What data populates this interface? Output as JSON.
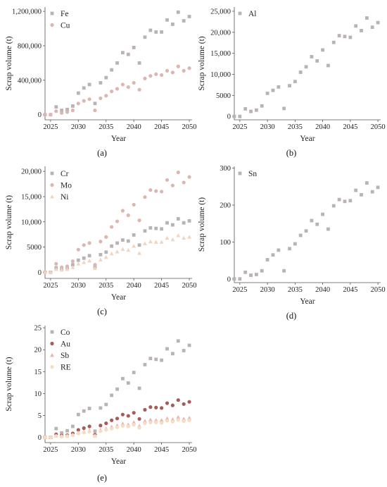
{
  "chart_data": [
    {
      "type": "scatter",
      "panel_label": "(a)",
      "xlabel": "Year",
      "ylabel": "Scrap volume (t)",
      "xlim": [
        2024,
        2050.5
      ],
      "ylim": [
        -60000,
        1250000
      ],
      "xticks": [
        2025,
        2030,
        2035,
        2040,
        2045,
        2050
      ],
      "yticks": [
        0,
        400000,
        800000,
        1200000
      ],
      "ytick_labels": [
        "0",
        "400,000",
        "800,000",
        "1,200,000"
      ],
      "legend_position": "top-left",
      "x": [
        2024,
        2025,
        2026,
        2027,
        2028,
        2029,
        2030,
        2031,
        2032,
        2033,
        2034,
        2035,
        2036,
        2037,
        2038,
        2039,
        2040,
        2041,
        2042,
        2043,
        2044,
        2045,
        2046,
        2047,
        2048,
        2049,
        2050
      ],
      "series": [
        {
          "name": "Fe",
          "color": "#b9b3b3",
          "marker": "square",
          "values": [
            0,
            0,
            90000,
            50000,
            60000,
            100000,
            250000,
            310000,
            350000,
            130000,
            370000,
            430000,
            520000,
            600000,
            720000,
            700000,
            780000,
            600000,
            900000,
            980000,
            960000,
            960000,
            1100000,
            1050000,
            1190000,
            1090000,
            1140000
          ]
        },
        {
          "name": "Cu",
          "color": "#dcb7b2",
          "marker": "circle",
          "values": [
            0,
            0,
            40000,
            20000,
            30000,
            50000,
            130000,
            160000,
            180000,
            50000,
            190000,
            220000,
            270000,
            300000,
            350000,
            320000,
            370000,
            290000,
            420000,
            450000,
            470000,
            460000,
            510000,
            490000,
            560000,
            510000,
            540000
          ]
        }
      ]
    },
    {
      "type": "scatter",
      "panel_label": "(b)",
      "xlabel": "Year",
      "ylabel": "Scrap volume (t)",
      "xlim": [
        2024,
        2050.5
      ],
      "ylim": [
        -800,
        26000
      ],
      "xticks": [
        2025,
        2030,
        2035,
        2040,
        2045,
        2050
      ],
      "yticks": [
        0,
        5000,
        10000,
        15000,
        20000,
        25000
      ],
      "ytick_labels": [
        "0",
        "5000",
        "10,000",
        "15,000",
        "20,000",
        "25,000"
      ],
      "legend_position": "top-left",
      "x": [
        2024,
        2025,
        2026,
        2027,
        2028,
        2029,
        2030,
        2031,
        2032,
        2033,
        2034,
        2035,
        2036,
        2037,
        2038,
        2039,
        2040,
        2041,
        2042,
        2043,
        2044,
        2045,
        2046,
        2047,
        2048,
        2049,
        2050
      ],
      "series": [
        {
          "name": "Al",
          "color": "#b9b3b3",
          "marker": "square",
          "values": [
            0,
            0,
            1800,
            1200,
            1500,
            2500,
            5500,
            6200,
            7000,
            1900,
            7300,
            8300,
            10500,
            11800,
            14200,
            13200,
            15800,
            12100,
            17600,
            19200,
            19000,
            18800,
            21500,
            20400,
            23400,
            21200,
            22300
          ]
        }
      ]
    },
    {
      "type": "scatter",
      "panel_label": "(c)",
      "xlabel": "Year",
      "ylabel": "Scrap volume (t)",
      "xlim": [
        2024,
        2050.5
      ],
      "ylim": [
        -1200,
        21000
      ],
      "xticks": [
        2025,
        2030,
        2035,
        2040,
        2045,
        2050
      ],
      "yticks": [
        0,
        5000,
        10000,
        15000,
        20000
      ],
      "ytick_labels": [
        "0",
        "5000",
        "10,000",
        "15,000",
        "20,000"
      ],
      "legend_position": "top-left",
      "x": [
        2024,
        2025,
        2026,
        2027,
        2028,
        2029,
        2030,
        2031,
        2032,
        2033,
        2034,
        2035,
        2036,
        2037,
        2038,
        2039,
        2040,
        2041,
        2042,
        2043,
        2044,
        2045,
        2046,
        2047,
        2048,
        2049,
        2050
      ],
      "series": [
        {
          "name": "Cr",
          "color": "#b9b3b3",
          "marker": "square",
          "values": [
            0,
            0,
            900,
            700,
            900,
            1500,
            2400,
            2800,
            3300,
            1100,
            3500,
            4000,
            5200,
            5800,
            6400,
            6200,
            7400,
            5400,
            8200,
            8800,
            8700,
            8600,
            9800,
            9400,
            10600,
            9800,
            10200
          ]
        },
        {
          "name": "Mo",
          "color": "#dcb7b2",
          "marker": "circle",
          "values": [
            0,
            0,
            1700,
            1000,
            1200,
            2200,
            4500,
            5400,
            5800,
            1500,
            6100,
            7000,
            9000,
            10100,
            12200,
            11300,
            13400,
            10300,
            14900,
            16300,
            16100,
            16000,
            18300,
            17200,
            19800,
            17800,
            18900
          ]
        },
        {
          "name": "Ni",
          "color": "#f0d5bf",
          "marker": "triangle",
          "values": [
            0,
            0,
            600,
            500,
            600,
            1000,
            1700,
            2000,
            2300,
            800,
            2500,
            3000,
            3700,
            4100,
            4600,
            4400,
            5200,
            3800,
            5700,
            6100,
            6000,
            6000,
            6800,
            6500,
            7300,
            6800,
            7000
          ]
        }
      ]
    },
    {
      "type": "scatter",
      "panel_label": "(d)",
      "xlabel": "Year",
      "ylabel": "Scrap volume (t)",
      "xlim": [
        2024,
        2050.5
      ],
      "ylim": [
        -10,
        305
      ],
      "xticks": [
        2025,
        2030,
        2035,
        2040,
        2045,
        2050
      ],
      "yticks": [
        0,
        100,
        200,
        300
      ],
      "ytick_labels": [
        "0",
        "100",
        "200",
        "300"
      ],
      "legend_position": "top-left",
      "x": [
        2024,
        2025,
        2026,
        2027,
        2028,
        2029,
        2030,
        2031,
        2032,
        2033,
        2034,
        2035,
        2036,
        2037,
        2038,
        2039,
        2040,
        2041,
        2042,
        2043,
        2044,
        2045,
        2046,
        2047,
        2048,
        2049,
        2050
      ],
      "series": [
        {
          "name": "Sn",
          "color": "#b9b3b3",
          "marker": "square",
          "values": [
            0,
            0,
            18,
            10,
            12,
            22,
            52,
            65,
            78,
            22,
            82,
            95,
            118,
            130,
            158,
            148,
            175,
            135,
            198,
            215,
            210,
            212,
            240,
            228,
            260,
            236,
            248
          ]
        }
      ]
    },
    {
      "type": "scatter",
      "panel_label": "(e)",
      "xlabel": "Year",
      "ylabel": "Scrap volume (t)",
      "xlim": [
        2024,
        2050.5
      ],
      "ylim": [
        -1.2,
        25.5
      ],
      "xticks": [
        2025,
        2030,
        2035,
        2040,
        2045,
        2050
      ],
      "yticks": [
        0,
        5,
        10,
        15,
        20,
        25
      ],
      "ytick_labels": [
        "0",
        "5",
        "10",
        "15",
        "20",
        "25"
      ],
      "legend_position": "top-left",
      "x": [
        2024,
        2025,
        2026,
        2027,
        2028,
        2029,
        2030,
        2031,
        2032,
        2033,
        2034,
        2035,
        2036,
        2037,
        2038,
        2039,
        2040,
        2041,
        2042,
        2043,
        2044,
        2045,
        2046,
        2047,
        2048,
        2049,
        2050
      ],
      "series": [
        {
          "name": "Co",
          "color": "#b9b3b3",
          "marker": "square",
          "values": [
            0,
            0,
            2,
            1,
            1.5,
            2.5,
            5.2,
            6,
            6.6,
            1.4,
            6.7,
            7.5,
            9.6,
            11,
            13.4,
            12.4,
            14.8,
            11.2,
            16.6,
            18,
            17.8,
            17.6,
            20.2,
            19.1,
            22,
            19.8,
            21
          ]
        },
        {
          "name": "Au",
          "color": "#a85a58",
          "marker": "circle",
          "values": [
            0,
            0,
            0.7,
            0.4,
            0.5,
            0.9,
            1.7,
            2.1,
            2.5,
            0.6,
            2.7,
            3.2,
            3.9,
            4.3,
            5.2,
            4.9,
            5.6,
            4.2,
            6.3,
            6.9,
            6.8,
            6.7,
            7.8,
            7.3,
            8.5,
            7.6,
            8.1
          ]
        },
        {
          "name": "Sb",
          "color": "#ebb3ae",
          "marker": "triangle",
          "values": [
            0,
            0,
            0.4,
            0.3,
            0.35,
            0.6,
            1.1,
            1.3,
            1.6,
            0.4,
            1.7,
            2,
            2.4,
            2.7,
            3.1,
            2.9,
            3.4,
            2.6,
            3.7,
            4,
            3.9,
            3.9,
            4.3,
            4.1,
            4.6,
            4.2,
            4.4
          ]
        },
        {
          "name": "RE",
          "color": "#f5dcc4",
          "marker": "circle",
          "values": [
            0,
            0,
            0.3,
            0.2,
            0.3,
            0.5,
            0.9,
            1.1,
            1.3,
            0.3,
            1.4,
            1.7,
            2,
            2.3,
            2.6,
            2.5,
            2.9,
            2.2,
            3.2,
            3.4,
            3.4,
            3.3,
            3.8,
            3.6,
            4,
            3.7,
            3.9
          ]
        }
      ]
    }
  ]
}
